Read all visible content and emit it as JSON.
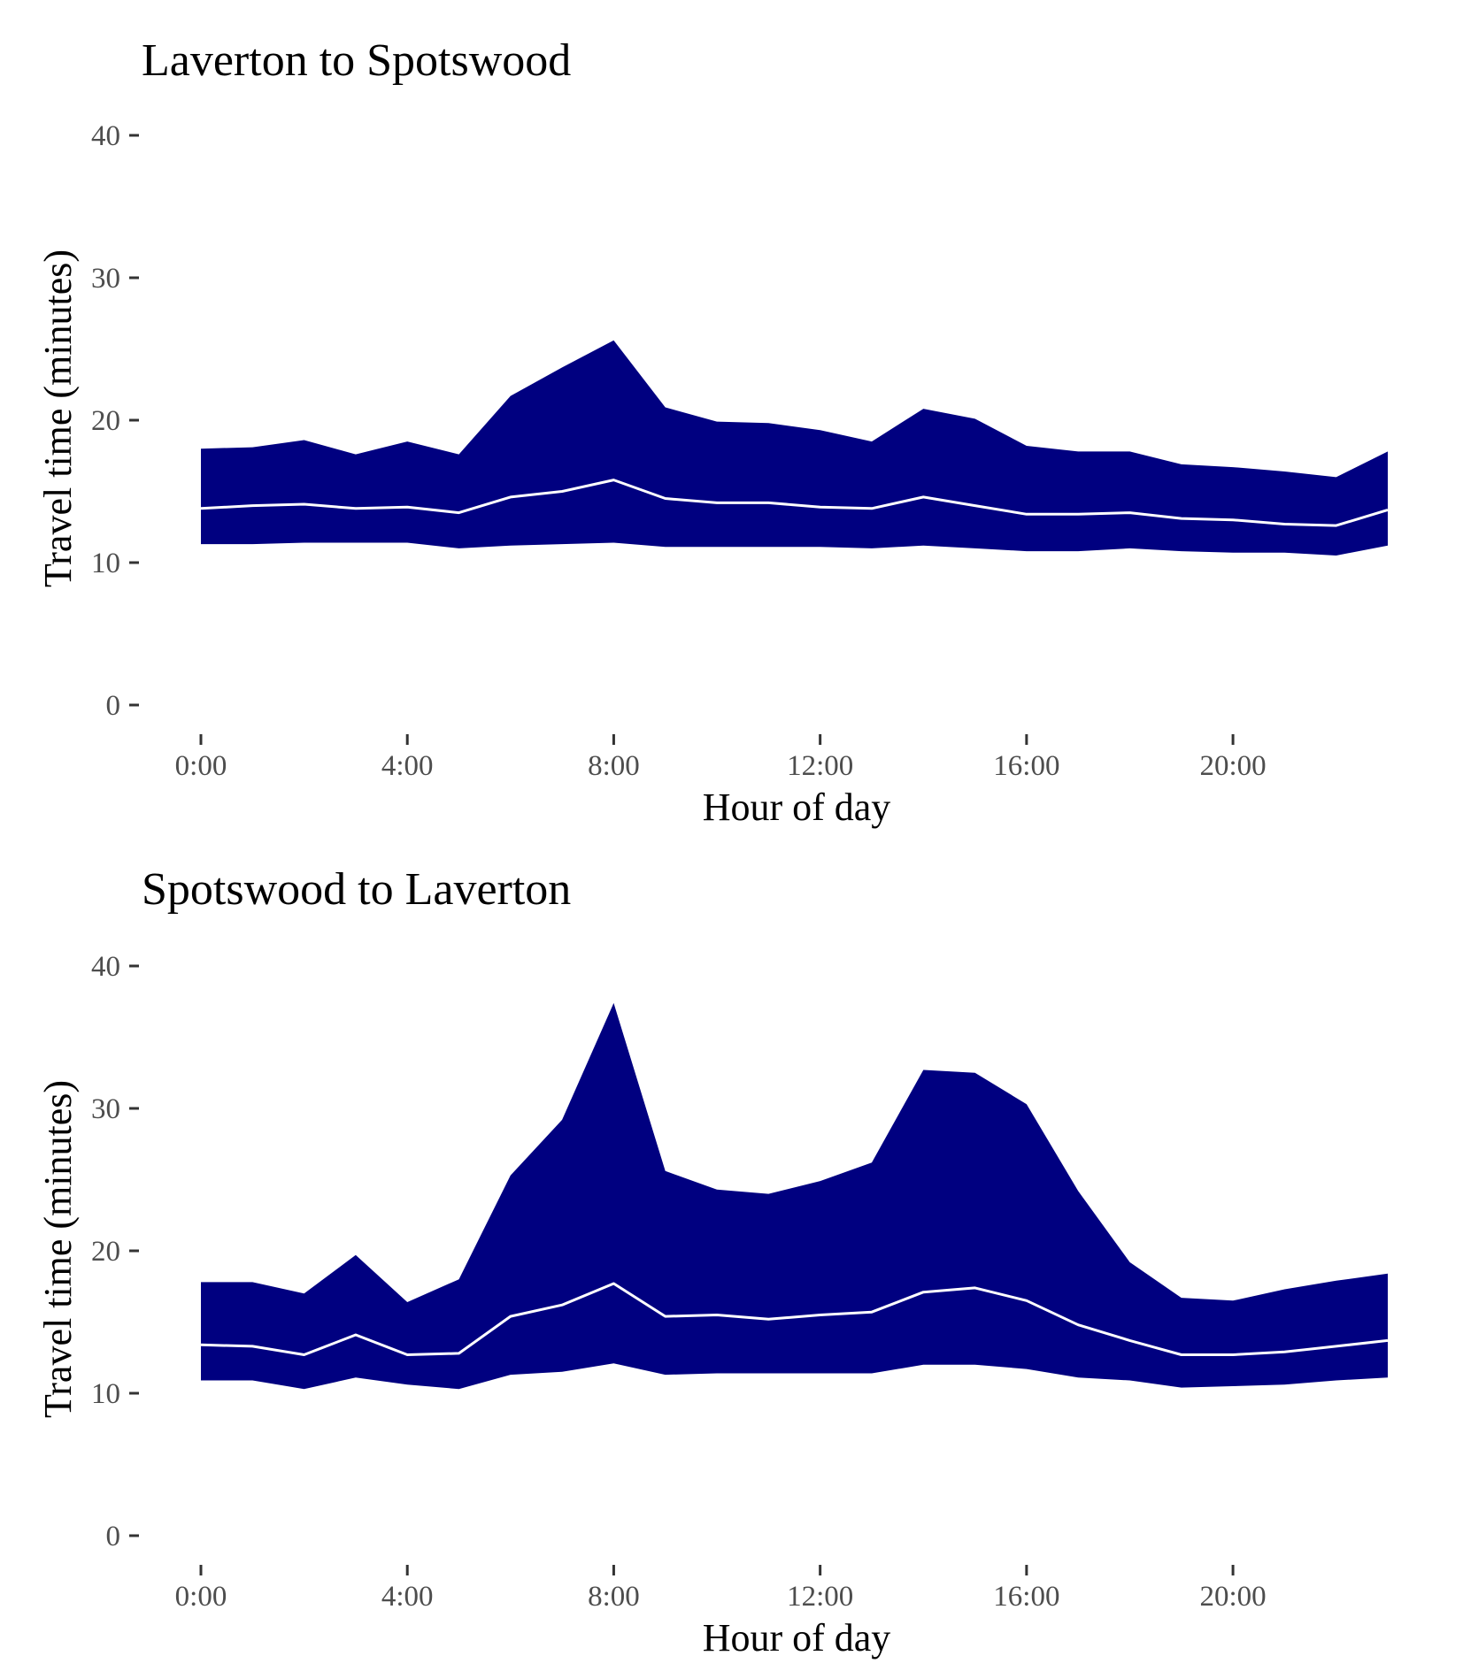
{
  "colors": {
    "band": "#000080",
    "median": "#ffffff",
    "background": "#ffffff"
  },
  "chart_data": [
    {
      "type": "area",
      "title": "Laverton to Spotswood",
      "xlabel": "Hour of day",
      "ylabel": "Travel time (minutes)",
      "xlim": [
        0,
        23
      ],
      "ylim": [
        0,
        40
      ],
      "grid": false,
      "legend": "none",
      "x_ticks": [
        0,
        4,
        8,
        12,
        16,
        20
      ],
      "x_tick_labels": [
        "0:00",
        "4:00",
        "8:00",
        "12:00",
        "16:00",
        "20:00"
      ],
      "y_ticks": [
        0,
        10,
        20,
        30,
        40
      ],
      "y_tick_labels": [
        "0",
        "10",
        "20",
        "30",
        "40"
      ],
      "x": [
        0,
        1,
        2,
        3,
        4,
        5,
        6,
        7,
        8,
        9,
        10,
        11,
        12,
        13,
        14,
        15,
        16,
        17,
        18,
        19,
        20,
        21,
        22,
        23
      ],
      "upper": [
        18.0,
        18.1,
        18.6,
        17.6,
        18.5,
        17.6,
        21.7,
        23.7,
        25.6,
        20.9,
        19.9,
        19.8,
        19.3,
        18.5,
        20.8,
        20.1,
        18.2,
        17.8,
        17.8,
        16.9,
        16.7,
        16.4,
        16.0,
        17.8
      ],
      "median": [
        13.8,
        14.0,
        14.1,
        13.8,
        13.9,
        13.5,
        14.6,
        15.0,
        15.8,
        14.5,
        14.2,
        14.2,
        13.9,
        13.8,
        14.6,
        14.0,
        13.4,
        13.4,
        13.5,
        13.1,
        13.0,
        12.7,
        12.6,
        13.7
      ],
      "lower": [
        11.3,
        11.3,
        11.4,
        11.4,
        11.4,
        11.0,
        11.2,
        11.3,
        11.4,
        11.1,
        11.1,
        11.1,
        11.1,
        11.0,
        11.2,
        11.0,
        10.8,
        10.8,
        11.0,
        10.8,
        10.7,
        10.7,
        10.5,
        11.2
      ]
    },
    {
      "type": "area",
      "title": "Spotswood to Laverton",
      "xlabel": "Hour of day",
      "ylabel": "Travel time (minutes)",
      "xlim": [
        0,
        23
      ],
      "ylim": [
        0,
        40
      ],
      "grid": false,
      "legend": "none",
      "x_ticks": [
        0,
        4,
        8,
        12,
        16,
        20
      ],
      "x_tick_labels": [
        "0:00",
        "4:00",
        "8:00",
        "12:00",
        "16:00",
        "20:00"
      ],
      "y_ticks": [
        0,
        10,
        20,
        30,
        40
      ],
      "y_tick_labels": [
        "0",
        "10",
        "20",
        "30",
        "40"
      ],
      "x": [
        0,
        1,
        2,
        3,
        4,
        5,
        6,
        7,
        8,
        9,
        10,
        11,
        12,
        13,
        14,
        15,
        16,
        17,
        18,
        19,
        20,
        21,
        22,
        23
      ],
      "upper": [
        17.8,
        17.8,
        17.0,
        19.7,
        16.4,
        18.0,
        25.3,
        29.2,
        37.4,
        25.6,
        24.3,
        24.0,
        24.9,
        26.2,
        32.7,
        32.5,
        30.3,
        24.2,
        19.2,
        16.7,
        16.5,
        17.3,
        17.9,
        18.4
      ],
      "median": [
        13.4,
        13.3,
        12.7,
        14.1,
        12.7,
        12.8,
        15.4,
        16.2,
        17.7,
        15.4,
        15.5,
        15.2,
        15.5,
        15.7,
        17.1,
        17.4,
        16.5,
        14.8,
        13.7,
        12.7,
        12.7,
        12.9,
        13.3,
        13.7
      ],
      "lower": [
        10.9,
        10.9,
        10.3,
        11.1,
        10.6,
        10.3,
        11.3,
        11.5,
        12.1,
        11.3,
        11.4,
        11.4,
        11.4,
        11.4,
        12.0,
        12.0,
        11.7,
        11.1,
        10.9,
        10.4,
        10.5,
        10.6,
        10.9,
        11.1
      ]
    }
  ]
}
